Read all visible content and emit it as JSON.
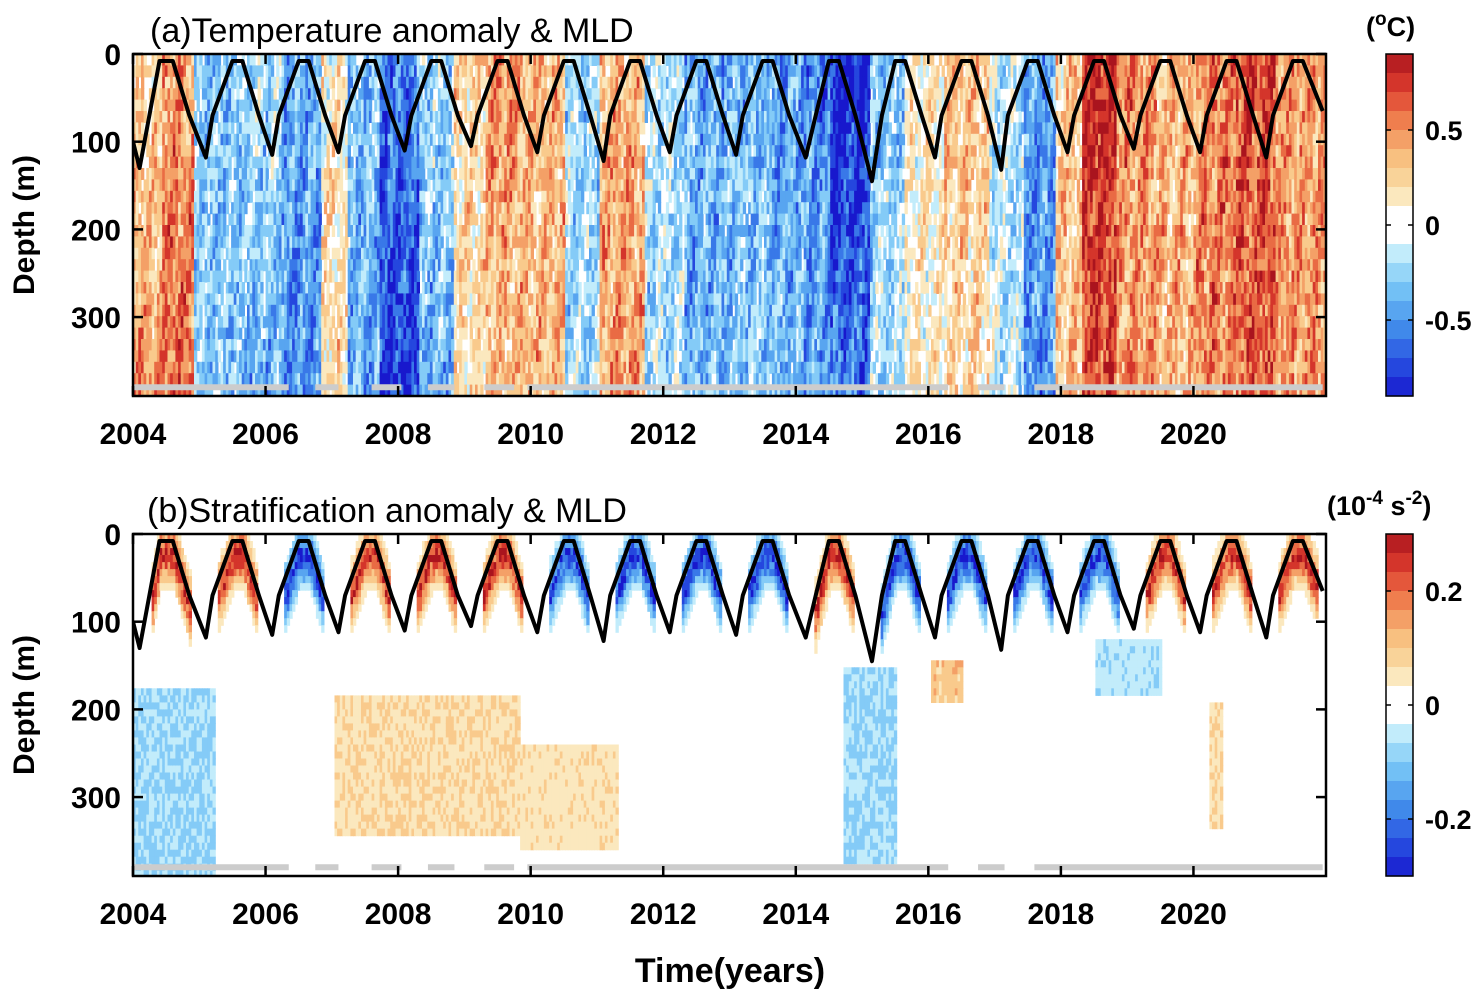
{
  "chart_data": [
    {
      "type": "heatmap",
      "title": "(a)Temperature anomaly & MLD",
      "xlabel": "",
      "ylabel": "Depth (m)",
      "xlim": [
        2004,
        2022
      ],
      "ylim": [
        0,
        390
      ],
      "y_reversed": true,
      "xticks": [
        2004,
        2006,
        2008,
        2010,
        2012,
        2014,
        2016,
        2018,
        2020
      ],
      "xtick_labels": [
        "2004",
        "2006",
        "2008",
        "2010",
        "2012",
        "2014",
        "2016",
        "2018",
        "2020"
      ],
      "yticks": [
        0,
        100,
        200,
        300
      ],
      "ytick_labels": [
        "0",
        "100",
        "200",
        "300"
      ],
      "colorbar": {
        "unit": "(oC)",
        "unit_base": "(",
        "unit_sup": "o",
        "unit_end": "C)",
        "range": [
          -0.9,
          0.9
        ],
        "ticks": [
          0.5,
          0,
          -0.5
        ],
        "tick_labels": [
          "0.5",
          "0",
          "-0.5"
        ]
      },
      "anomaly_bands": [
        {
          "start": 2004.0,
          "end": 2004.4,
          "value": 0.15,
          "deep": 0.5
        },
        {
          "start": 2004.4,
          "end": 2004.9,
          "value": 0.45,
          "deep": 0.6
        },
        {
          "start": 2004.9,
          "end": 2005.6,
          "value": -0.3,
          "deep": -0.3
        },
        {
          "start": 2005.6,
          "end": 2006.2,
          "value": -0.15,
          "deep": -0.4
        },
        {
          "start": 2006.2,
          "end": 2006.8,
          "value": -0.4,
          "deep": -0.5
        },
        {
          "start": 2006.8,
          "end": 2007.2,
          "value": 0.1,
          "deep": 0.2
        },
        {
          "start": 2007.2,
          "end": 2007.7,
          "value": -0.3,
          "deep": -0.45
        },
        {
          "start": 2007.7,
          "end": 2008.3,
          "value": -0.55,
          "deep": -0.8
        },
        {
          "start": 2008.3,
          "end": 2008.8,
          "value": -0.2,
          "deep": -0.4
        },
        {
          "start": 2008.8,
          "end": 2009.3,
          "value": 0.2,
          "deep": 0.15
        },
        {
          "start": 2009.3,
          "end": 2009.8,
          "value": 0.5,
          "deep": 0.3
        },
        {
          "start": 2009.8,
          "end": 2010.5,
          "value": 0.35,
          "deep": 0.35
        },
        {
          "start": 2010.5,
          "end": 2011.0,
          "value": -0.2,
          "deep": -0.2
        },
        {
          "start": 2011.0,
          "end": 2011.7,
          "value": 0.35,
          "deep": 0.45
        },
        {
          "start": 2011.7,
          "end": 2012.3,
          "value": -0.15,
          "deep": -0.2
        },
        {
          "start": 2012.3,
          "end": 2012.9,
          "value": -0.4,
          "deep": -0.35
        },
        {
          "start": 2012.9,
          "end": 2013.6,
          "value": -0.35,
          "deep": -0.3
        },
        {
          "start": 2013.6,
          "end": 2014.1,
          "value": -0.45,
          "deep": -0.35
        },
        {
          "start": 2014.1,
          "end": 2014.5,
          "value": -0.55,
          "deep": -0.4
        },
        {
          "start": 2014.5,
          "end": 2015.1,
          "value": -0.9,
          "deep": -0.55
        },
        {
          "start": 2015.1,
          "end": 2015.6,
          "value": -0.3,
          "deep": -0.15
        },
        {
          "start": 2015.6,
          "end": 2016.2,
          "value": 0.1,
          "deep": 0.05
        },
        {
          "start": 2016.2,
          "end": 2016.9,
          "value": 0.3,
          "deep": 0.15
        },
        {
          "start": 2016.9,
          "end": 2017.4,
          "value": -0.15,
          "deep": -0.1
        },
        {
          "start": 2017.4,
          "end": 2017.9,
          "value": -0.45,
          "deep": -0.5
        },
        {
          "start": 2017.9,
          "end": 2018.3,
          "value": 0.25,
          "deep": 0.3
        },
        {
          "start": 2018.3,
          "end": 2018.8,
          "value": 0.8,
          "deep": 0.7
        },
        {
          "start": 2018.8,
          "end": 2019.4,
          "value": 0.5,
          "deep": 0.45
        },
        {
          "start": 2019.4,
          "end": 2020.0,
          "value": 0.35,
          "deep": 0.35
        },
        {
          "start": 2020.0,
          "end": 2020.6,
          "value": 0.55,
          "deep": 0.5
        },
        {
          "start": 2020.6,
          "end": 2021.2,
          "value": 0.7,
          "deep": 0.6
        },
        {
          "start": 2021.2,
          "end": 2022.0,
          "value": 0.45,
          "deep": 0.45
        }
      ],
      "mld_line": {
        "color": "#000000",
        "years": [
          2004.0,
          2004.1,
          2004.4,
          2004.6,
          2004.85,
          2005.1,
          2005.2,
          2005.5,
          2005.65,
          2005.9,
          2006.1,
          2006.2,
          2006.5,
          2006.65,
          2006.9,
          2007.1,
          2007.2,
          2007.5,
          2007.65,
          2007.9,
          2008.1,
          2008.2,
          2008.5,
          2008.65,
          2008.9,
          2009.1,
          2009.2,
          2009.5,
          2009.65,
          2009.9,
          2010.1,
          2010.2,
          2010.5,
          2010.65,
          2010.9,
          2011.1,
          2011.2,
          2011.5,
          2011.65,
          2011.9,
          2012.1,
          2012.2,
          2012.5,
          2012.65,
          2012.9,
          2013.1,
          2013.2,
          2013.5,
          2013.65,
          2013.9,
          2014.15,
          2014.3,
          2014.5,
          2014.65,
          2014.9,
          2015.15,
          2015.3,
          2015.5,
          2015.65,
          2015.9,
          2016.1,
          2016.2,
          2016.5,
          2016.65,
          2016.9,
          2017.1,
          2017.2,
          2017.5,
          2017.65,
          2017.9,
          2018.1,
          2018.2,
          2018.5,
          2018.65,
          2018.9,
          2019.1,
          2019.2,
          2019.5,
          2019.65,
          2019.9,
          2020.1,
          2020.2,
          2020.5,
          2020.65,
          2020.9,
          2021.1,
          2021.2,
          2021.5,
          2021.65,
          2021.95
        ],
        "depth": [
          100,
          130,
          8,
          8,
          70,
          118,
          70,
          8,
          8,
          70,
          115,
          70,
          8,
          8,
          70,
          112,
          70,
          8,
          8,
          70,
          110,
          70,
          8,
          8,
          70,
          105,
          70,
          8,
          8,
          70,
          112,
          70,
          8,
          8,
          70,
          122,
          70,
          8,
          8,
          70,
          112,
          70,
          8,
          8,
          70,
          115,
          70,
          8,
          8,
          70,
          118,
          70,
          8,
          8,
          70,
          145,
          70,
          8,
          8,
          70,
          118,
          70,
          8,
          8,
          70,
          132,
          70,
          8,
          8,
          70,
          112,
          70,
          8,
          8,
          70,
          108,
          70,
          8,
          8,
          70,
          112,
          70,
          8,
          8,
          70,
          118,
          70,
          8,
          8,
          65
        ]
      },
      "data_gaps_bar": {
        "color": "#cccccc",
        "depth": 380,
        "segments": [
          [
            2004.0,
            2006.35
          ],
          [
            2006.75,
            2007.1
          ],
          [
            2007.6,
            2008.05
          ],
          [
            2008.45,
            2008.85
          ],
          [
            2009.3,
            2009.75
          ],
          [
            2009.95,
            2016.3
          ],
          [
            2016.75,
            2017.15
          ],
          [
            2017.6,
            2021.95
          ]
        ]
      }
    },
    {
      "type": "heatmap",
      "title": "(b)Stratification anomaly & MLD",
      "xlabel": "Time(years)",
      "ylabel": "Depth (m)",
      "xlim": [
        2004,
        2022
      ],
      "ylim": [
        0,
        390
      ],
      "y_reversed": true,
      "xticks": [
        2004,
        2006,
        2008,
        2010,
        2012,
        2014,
        2016,
        2018,
        2020
      ],
      "xtick_labels": [
        "2004",
        "2006",
        "2008",
        "2010",
        "2012",
        "2014",
        "2016",
        "2018",
        "2020"
      ],
      "yticks": [
        0,
        100,
        200,
        300
      ],
      "ytick_labels": [
        "0",
        "100",
        "200",
        "300"
      ],
      "colorbar": {
        "unit": "(10-4 s-2)",
        "unit_base": "(10",
        "unit_sup": "-4",
        "unit_mid": " s",
        "unit_sup2": "-2",
        "unit_end": ")",
        "range": [
          -0.3,
          0.3
        ],
        "ticks": [
          0.2,
          0,
          -0.2
        ],
        "tick_labels": [
          "0.2",
          "0",
          "-0.2"
        ]
      },
      "mld_line": {
        "color": "#000000",
        "same_as_panel": "a"
      },
      "data_gaps_bar": {
        "color": "#cccccc",
        "depth": 380,
        "segments": [
          [
            2004.0,
            2006.35
          ],
          [
            2006.75,
            2007.1
          ],
          [
            2007.6,
            2008.05
          ],
          [
            2008.45,
            2008.85
          ],
          [
            2009.3,
            2009.75
          ],
          [
            2009.95,
            2016.3
          ],
          [
            2016.75,
            2017.15
          ],
          [
            2017.6,
            2021.95
          ]
        ]
      },
      "seasonal_sign": [
        1,
        1,
        -1,
        1,
        1,
        1,
        -1,
        -1,
        -1,
        -1,
        1,
        -1,
        -1,
        -1,
        -1,
        1,
        1,
        1
      ],
      "deep_patches": [
        {
          "start": 2004.0,
          "end": 2005.2,
          "top": 170,
          "bottom": 390,
          "value": -0.08
        },
        {
          "start": 2007.0,
          "end": 2009.8,
          "top": 180,
          "bottom": 340,
          "value": 0.07
        },
        {
          "start": 2009.8,
          "end": 2011.3,
          "top": 240,
          "bottom": 360,
          "value": 0.06
        },
        {
          "start": 2014.7,
          "end": 2015.5,
          "top": 150,
          "bottom": 370,
          "value": -0.08
        },
        {
          "start": 2016.0,
          "end": 2016.5,
          "top": 140,
          "bottom": 190,
          "value": 0.1
        },
        {
          "start": 2018.5,
          "end": 2019.5,
          "top": 120,
          "bottom": 180,
          "value": -0.06
        },
        {
          "start": 2020.2,
          "end": 2020.4,
          "top": 190,
          "bottom": 330,
          "value": 0.07
        }
      ]
    }
  ]
}
